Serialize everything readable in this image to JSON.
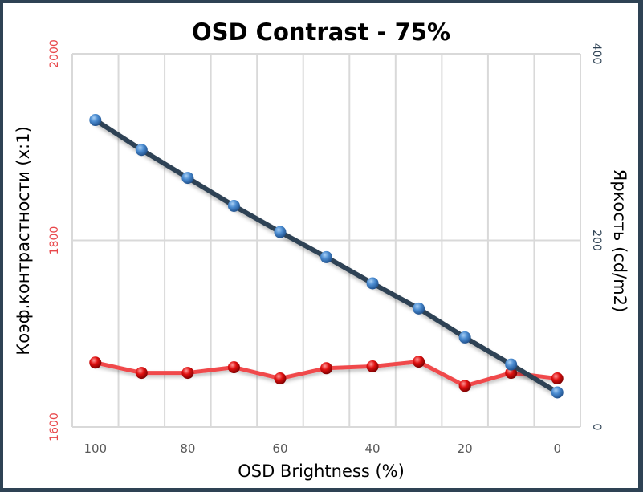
{
  "chart_data": {
    "type": "line",
    "title": "OSD Contrast - 75%",
    "xlabel": "OSD Brightness (%)",
    "ylabel_left": "Коэф.контрастности  (x:1)",
    "ylabel_right": "Яркость (cd/m2)",
    "x": [
      100,
      90,
      80,
      70,
      60,
      50,
      40,
      30,
      20,
      10,
      0
    ],
    "x_tick_labels": [
      "100",
      "80",
      "60",
      "40",
      "20",
      "0"
    ],
    "x_reversed": true,
    "ylim_left": [
      1600,
      2000
    ],
    "ylim_right": [
      0,
      400
    ],
    "left_tick_labels": [
      "1600",
      "1800",
      "2000"
    ],
    "right_tick_labels": [
      "0",
      "200",
      "400"
    ],
    "grid": true,
    "legend": "none",
    "series": [
      {
        "name": "Яркость (cd/m2)",
        "axis": "right",
        "color": "#2e4254",
        "marker_color": "#3b7dc4",
        "values": [
          329,
          297,
          267,
          237,
          209,
          182,
          154,
          127,
          96,
          67,
          37
        ]
      },
      {
        "name": "Коэф.контрастности (x:1)",
        "axis": "left",
        "color": "#f0484b",
        "marker_color": "#d10d0d",
        "values": [
          1669,
          1658,
          1658,
          1664,
          1652,
          1663,
          1665,
          1670,
          1644,
          1658,
          1652
        ]
      }
    ]
  }
}
